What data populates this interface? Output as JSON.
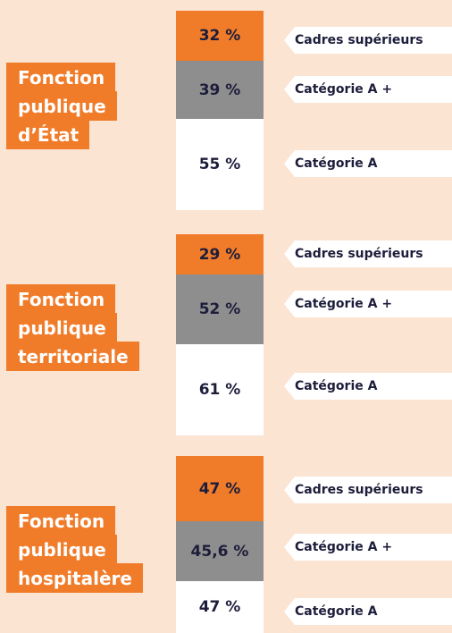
{
  "groups": [
    {
      "title": [
        "Fonction",
        "publique",
        "d’État"
      ],
      "rows": [
        {
          "value": "32 %",
          "label": "Cadres supérieurs"
        },
        {
          "value": "39 %",
          "label": "Catégorie A +"
        },
        {
          "value": "55 %",
          "label": "Catégorie A"
        }
      ]
    },
    {
      "title": [
        "Fonction",
        "publique",
        "territoriale"
      ],
      "rows": [
        {
          "value": "29 %",
          "label": "Cadres supérieurs"
        },
        {
          "value": "52 %",
          "label": "Catégorie A +"
        },
        {
          "value": "61 %",
          "label": "Catégorie A"
        }
      ]
    },
    {
      "title": [
        "Fonction",
        "publique",
        "hospitalère"
      ],
      "rows": [
        {
          "value": "47 %",
          "label": "Cadres supérieurs"
        },
        {
          "value": "45,6 %",
          "label": "Catégorie A +"
        },
        {
          "value": "47 %",
          "label": "Catégorie A"
        }
      ]
    }
  ]
}
